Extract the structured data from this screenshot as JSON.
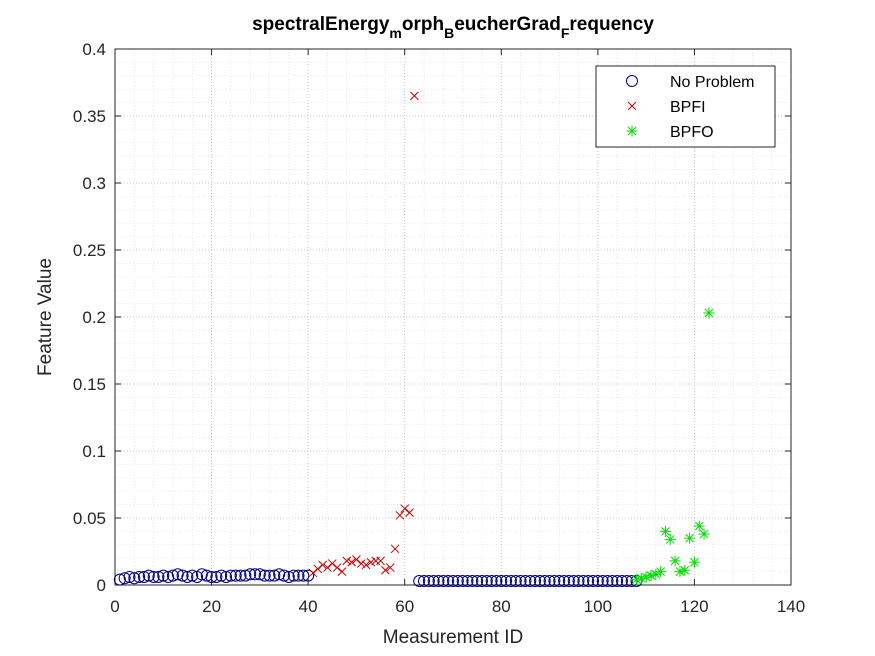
{
  "chart_data": {
    "type": "scatter",
    "title": {
      "parts": [
        {
          "text": "spectralEnergy",
          "sub": false
        },
        {
          "text": "m",
          "sub": true
        },
        {
          "text": "orph",
          "sub": false
        },
        {
          "text": "B",
          "sub": true
        },
        {
          "text": "eucherGrad",
          "sub": false
        },
        {
          "text": "F",
          "sub": true
        },
        {
          "text": "requency",
          "sub": false
        }
      ]
    },
    "xlabel": "Measurement ID",
    "ylabel": "Feature Value",
    "xlim": [
      0,
      140
    ],
    "ylim": [
      0,
      0.4
    ],
    "xticks": [
      0,
      20,
      40,
      60,
      80,
      100,
      120,
      140
    ],
    "yticks": [
      0,
      0.05,
      0.1,
      0.15,
      0.2,
      0.25,
      0.3,
      0.35,
      0.4
    ],
    "xtick_labels": [
      "0",
      "20",
      "40",
      "60",
      "80",
      "100",
      "120",
      "140"
    ],
    "ytick_labels": [
      "0",
      "0.05",
      "0.1",
      "0.15",
      "0.2",
      "0.25",
      "0.3",
      "0.35",
      "0.4"
    ],
    "grid": true,
    "minor_grid": true,
    "legend_position": "top-right",
    "series": [
      {
        "name": "No Problem",
        "marker": "circle",
        "color": "#00007f",
        "x": [
          1,
          2,
          3,
          4,
          5,
          6,
          7,
          8,
          9,
          10,
          11,
          12,
          13,
          14,
          15,
          16,
          17,
          18,
          19,
          20,
          21,
          22,
          23,
          24,
          25,
          26,
          27,
          28,
          29,
          30,
          31,
          32,
          33,
          34,
          35,
          36,
          37,
          38,
          39,
          40,
          63,
          64,
          65,
          66,
          67,
          68,
          69,
          70,
          71,
          72,
          73,
          74,
          75,
          76,
          77,
          78,
          79,
          80,
          81,
          82,
          83,
          84,
          85,
          86,
          87,
          88,
          89,
          90,
          91,
          92,
          93,
          94,
          95,
          96,
          97,
          98,
          99,
          100,
          101,
          102,
          103,
          104,
          105,
          106,
          107,
          108
        ],
        "y": [
          0.004,
          0.005,
          0.006,
          0.005,
          0.006,
          0.006,
          0.007,
          0.006,
          0.006,
          0.007,
          0.006,
          0.007,
          0.008,
          0.007,
          0.006,
          0.007,
          0.006,
          0.008,
          0.007,
          0.006,
          0.006,
          0.007,
          0.006,
          0.007,
          0.007,
          0.007,
          0.007,
          0.008,
          0.008,
          0.008,
          0.007,
          0.007,
          0.007,
          0.008,
          0.007,
          0.006,
          0.007,
          0.007,
          0.007,
          0.007,
          0.003,
          0.003,
          0.003,
          0.003,
          0.003,
          0.003,
          0.003,
          0.003,
          0.003,
          0.003,
          0.003,
          0.003,
          0.003,
          0.003,
          0.003,
          0.003,
          0.003,
          0.003,
          0.003,
          0.003,
          0.003,
          0.003,
          0.003,
          0.003,
          0.003,
          0.003,
          0.003,
          0.003,
          0.003,
          0.003,
          0.003,
          0.003,
          0.003,
          0.003,
          0.003,
          0.003,
          0.003,
          0.003,
          0.003,
          0.003,
          0.003,
          0.003,
          0.003,
          0.003,
          0.003,
          0.003
        ]
      },
      {
        "name": "BPFI",
        "marker": "x",
        "color": "#cc0000",
        "x": [
          41,
          42,
          43,
          44,
          45,
          46,
          47,
          48,
          49,
          50,
          51,
          52,
          53,
          54,
          55,
          56,
          57,
          58,
          59,
          60,
          61,
          62
        ],
        "y": [
          0.009,
          0.012,
          0.015,
          0.013,
          0.016,
          0.013,
          0.01,
          0.018,
          0.017,
          0.019,
          0.016,
          0.015,
          0.017,
          0.018,
          0.018,
          0.011,
          0.013,
          0.027,
          0.052,
          0.057,
          0.054,
          0.365
        ]
      },
      {
        "name": "BPFO",
        "marker": "star",
        "color": "#00dd00",
        "x": [
          108,
          109,
          110,
          111,
          112,
          113,
          114,
          115,
          116,
          117,
          118,
          119,
          120,
          121,
          122,
          123
        ],
        "y": [
          0.004,
          0.005,
          0.006,
          0.007,
          0.008,
          0.01,
          0.04,
          0.034,
          0.018,
          0.01,
          0.011,
          0.035,
          0.017,
          0.044,
          0.038,
          0.203
        ]
      }
    ]
  }
}
